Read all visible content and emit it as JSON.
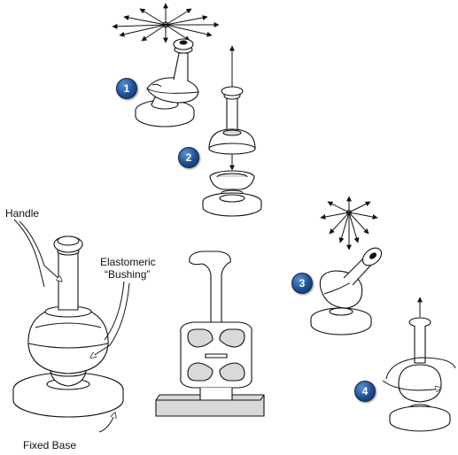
{
  "labels": {
    "handle": "Handle",
    "bushing_line1": "Elastomeric",
    "bushing_line2": "“Bushing”",
    "fixed_base": "Fixed Base"
  },
  "steps": [
    "1",
    "2",
    "3",
    "4"
  ]
}
